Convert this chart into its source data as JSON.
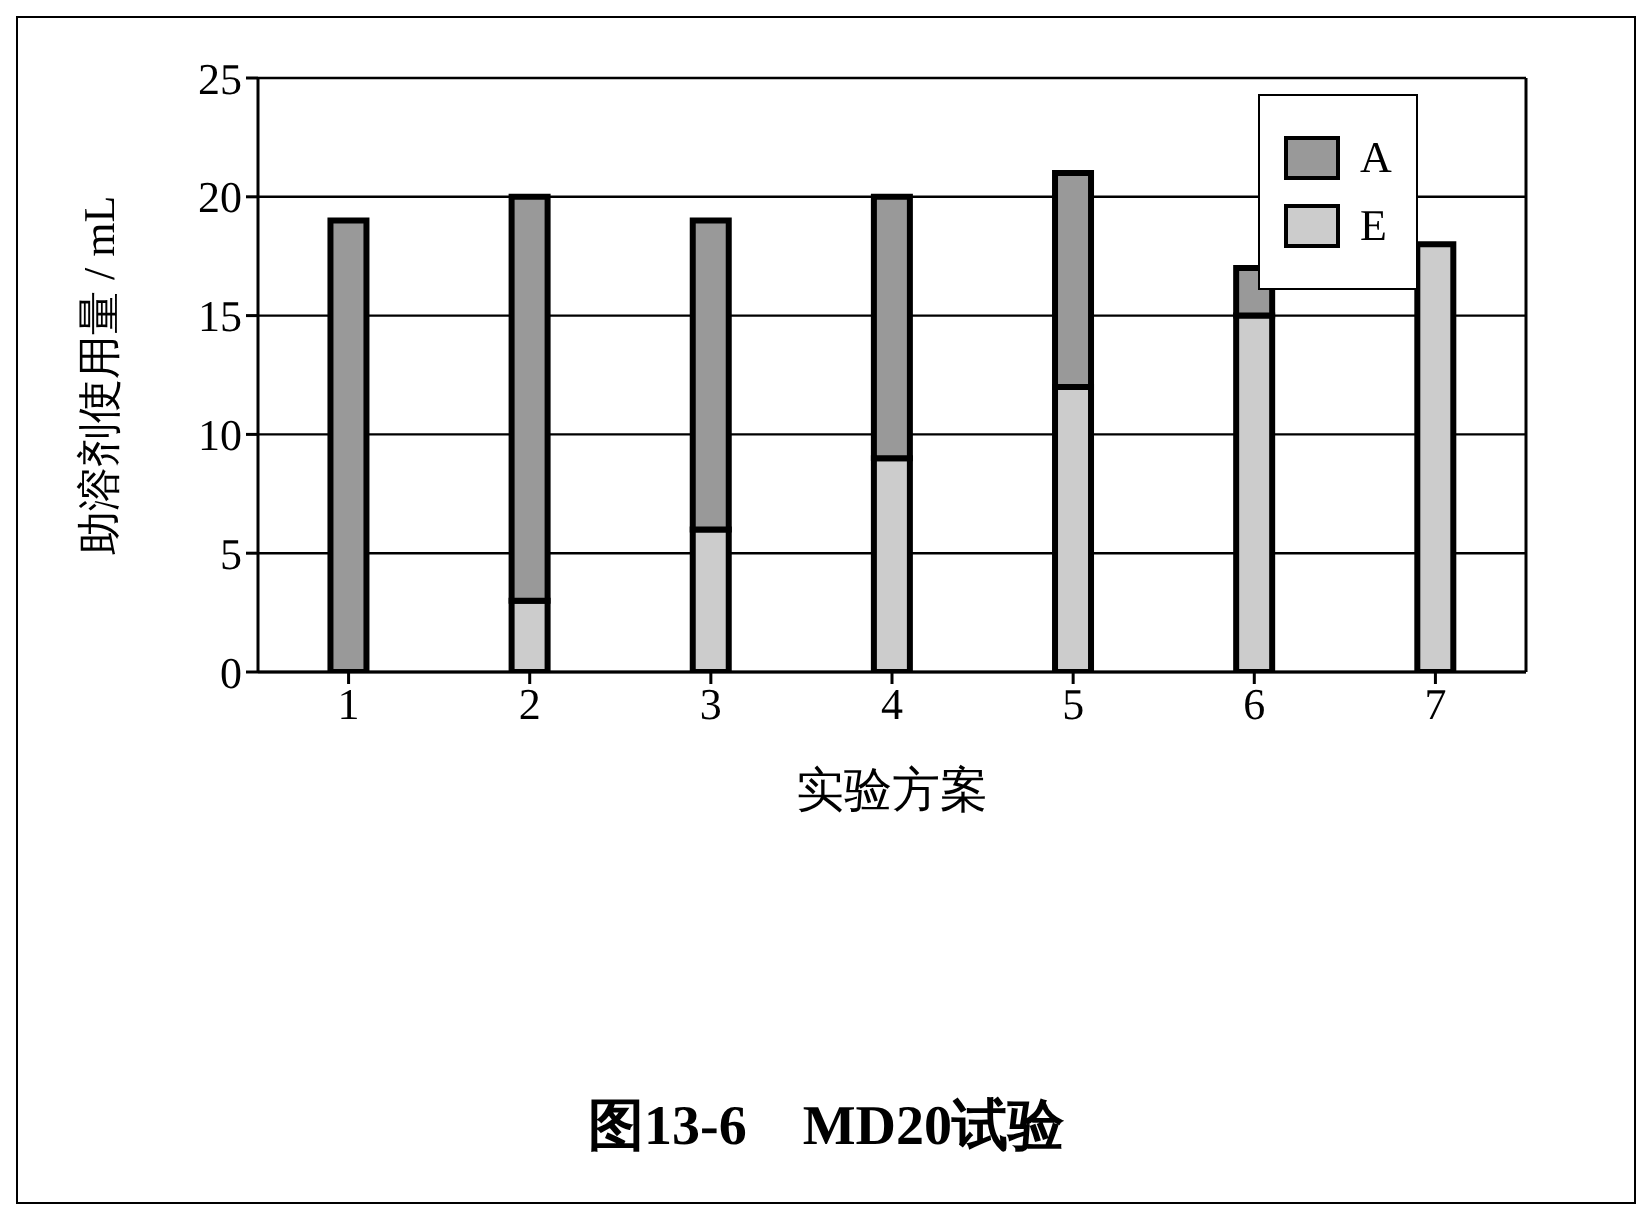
{
  "chart_data": {
    "type": "bar",
    "title": "图13-6　MD20试验",
    "xlabel": "实验方案",
    "ylabel": "助溶剂使用量 / mL",
    "categories": [
      "1",
      "2",
      "3",
      "4",
      "5",
      "6",
      "7"
    ],
    "series": [
      {
        "name": "E",
        "color": "#cccccc",
        "values": [
          0,
          3,
          6,
          9,
          12,
          15,
          18
        ]
      },
      {
        "name": "A",
        "color": "#999999",
        "values": [
          19,
          17,
          13,
          11,
          9,
          2,
          0
        ]
      }
    ],
    "stacked": true,
    "ylim": [
      0,
      25
    ],
    "yticks": [
      0,
      5,
      10,
      15,
      20,
      25
    ],
    "grid": "y",
    "legend": "top right"
  }
}
